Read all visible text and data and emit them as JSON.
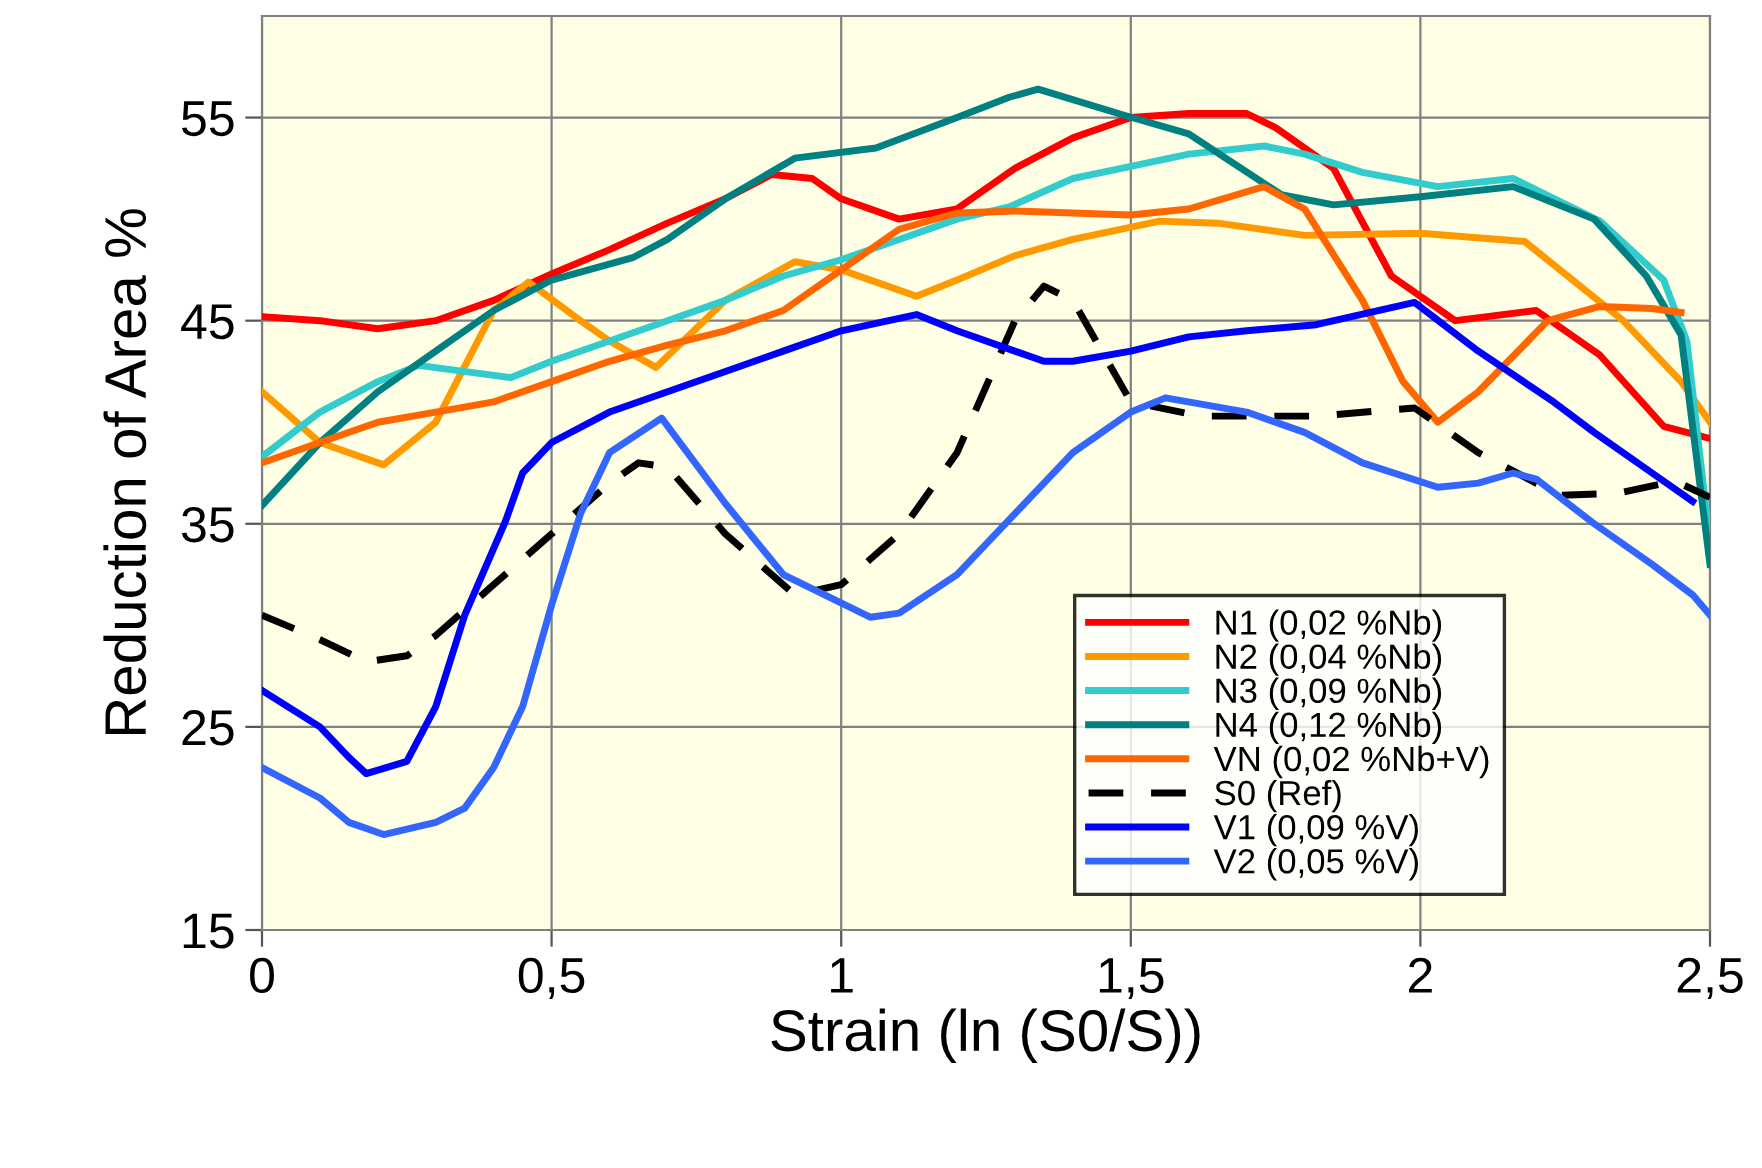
{
  "chart_data": {
    "type": "line",
    "xlabel": "Strain (ln (S0/S))",
    "ylabel": "Reduction of Area %",
    "xlim": [
      0,
      2.5
    ],
    "ylim": [
      15,
      60
    ],
    "xticks": [
      0,
      {
        "value": 0.5,
        "label": "0,5"
      },
      1,
      {
        "value": 1.5,
        "label": "1,5"
      },
      2,
      {
        "value": 2.5,
        "label": "2,5"
      }
    ],
    "yticks": [
      15,
      25,
      35,
      45,
      55
    ],
    "grid": true,
    "legend": "bottom right",
    "series": [
      {
        "name": "N1 (0,02 %Nb)",
        "color": "#ff0000",
        "line_style": "solid",
        "x": [
          0,
          0.1,
          0.2,
          0.3,
          0.4,
          0.5,
          0.6,
          0.7,
          0.8,
          0.88,
          0.95,
          1.0,
          1.1,
          1.2,
          1.3,
          1.4,
          1.5,
          1.6,
          1.7,
          1.75,
          1.85,
          1.95,
          2.06,
          2.2,
          2.31,
          2.42,
          2.5
        ],
        "values": [
          45.2,
          45,
          44.6,
          45,
          46,
          47.3,
          48.5,
          49.8,
          51,
          52.2,
          52,
          51,
          50,
          50.5,
          52.5,
          54,
          55,
          55.2,
          55.2,
          54.5,
          52.5,
          47.2,
          45,
          45.5,
          43.3,
          39.8,
          39.2
        ]
      },
      {
        "name": "N2 (0,04 %Nb)",
        "color": "#ff9900",
        "line_style": "solid",
        "x": [
          0,
          0.1,
          0.21,
          0.3,
          0.4,
          0.46,
          0.55,
          0.6,
          0.68,
          0.8,
          0.92,
          1.0,
          1.13,
          1.2,
          1.3,
          1.4,
          1.55,
          1.65,
          1.8,
          2.0,
          2.18,
          2.35,
          2.45,
          2.5
        ],
        "values": [
          41.5,
          39,
          37.9,
          40,
          45.5,
          46.9,
          45,
          44,
          42.7,
          46,
          47.9,
          47.5,
          46.2,
          47,
          48.2,
          49,
          49.9,
          49.8,
          49.2,
          49.3,
          48.9,
          45,
          42,
          40
        ]
      },
      {
        "name": "N3 (0,09 %Nb)",
        "color": "#33cccc",
        "line_style": "solid",
        "x": [
          0,
          0.1,
          0.2,
          0.27,
          0.43,
          0.5,
          0.6,
          0.7,
          0.8,
          0.9,
          1.0,
          1.1,
          1.2,
          1.29,
          1.4,
          1.5,
          1.6,
          1.73,
          1.8,
          1.9,
          2.03,
          2.16,
          2.31,
          2.42,
          2.46,
          2.5
        ],
        "values": [
          38.3,
          40.5,
          42,
          42.8,
          42.2,
          43,
          44,
          45,
          46,
          47.2,
          48,
          49,
          50,
          50.6,
          52,
          52.6,
          53.2,
          53.6,
          53.2,
          52.3,
          51.6,
          52,
          49.9,
          47,
          44,
          34
        ]
      },
      {
        "name": "N4 (0,12 %Nb)",
        "color": "#008080",
        "line_style": "solid",
        "x": [
          0,
          0.1,
          0.2,
          0.3,
          0.4,
          0.5,
          0.64,
          0.7,
          0.8,
          0.92,
          1.06,
          1.2,
          1.29,
          1.34,
          1.49,
          1.6,
          1.76,
          1.85,
          2.0,
          2.16,
          2.3,
          2.39,
          2.45,
          2.5
        ],
        "values": [
          35.9,
          39,
          41.5,
          43.5,
          45.5,
          47,
          48.1,
          49,
          51,
          53,
          53.5,
          55,
          56,
          56.4,
          55.1,
          54.2,
          51.2,
          50.7,
          51.1,
          51.6,
          50,
          47.2,
          44.3,
          33
        ]
      },
      {
        "name": "VN (0,02 %Nb+V)",
        "color": "#ff6600",
        "line_style": "solid",
        "x": [
          0,
          0.1,
          0.2,
          0.3,
          0.4,
          0.5,
          0.6,
          0.7,
          0.8,
          0.9,
          1.0,
          1.1,
          1.2,
          1.3,
          1.4,
          1.5,
          1.6,
          1.73,
          1.8,
          1.9,
          1.97,
          2.03,
          2.1,
          2.22,
          2.31,
          2.4,
          2.45
        ],
        "values": [
          38,
          39,
          40,
          40.5,
          41,
          42,
          43,
          43.8,
          44.5,
          45.5,
          47.5,
          49.5,
          50.3,
          50.4,
          50.3,
          50.2,
          50.5,
          51.6,
          50.5,
          46,
          42,
          40,
          41.5,
          45,
          45.7,
          45.6,
          45.4
        ]
      },
      {
        "name": "S0 (Ref)",
        "color": "#000000",
        "line_style": "dashed",
        "x": [
          0,
          0.1,
          0.18,
          0.25,
          0.3,
          0.4,
          0.5,
          0.6,
          0.65,
          0.7,
          0.8,
          0.92,
          1.0,
          1.1,
          1.2,
          1.3,
          1.35,
          1.4,
          1.45,
          1.5,
          1.62,
          1.82,
          1.99,
          2.1,
          2.24,
          2.34,
          2.44,
          2.5
        ],
        "values": [
          30.5,
          29.3,
          28.2,
          28.5,
          29.5,
          32,
          34.5,
          37,
          38,
          37.8,
          34.5,
          31.5,
          32,
          34.5,
          38.5,
          45,
          46.7,
          46,
          43.5,
          41,
          40.3,
          40.3,
          40.7,
          38.5,
          36.4,
          36.5,
          37.1,
          36.3
        ]
      },
      {
        "name": "V1 (0,09 %V)",
        "color": "#0000ff",
        "line_style": "solid",
        "x": [
          0,
          0.1,
          0.15,
          0.18,
          0.25,
          0.3,
          0.35,
          0.42,
          0.45,
          0.5,
          0.6,
          0.7,
          0.8,
          0.9,
          1.0,
          1.13,
          1.2,
          1.35,
          1.4,
          1.5,
          1.6,
          1.7,
          1.82,
          1.99,
          2.1,
          2.23,
          2.3,
          2.4,
          2.47
        ],
        "values": [
          26.8,
          25,
          23.5,
          22.7,
          23.3,
          26,
          30.5,
          35.1,
          37.5,
          39,
          40.5,
          41.5,
          42.5,
          43.5,
          44.5,
          45.3,
          44.5,
          43,
          43,
          43.5,
          44.2,
          44.5,
          44.8,
          45.9,
          43.5,
          41,
          39.5,
          37.5,
          36.1
        ]
      },
      {
        "name": "V2 (0,05 %V)",
        "color": "#3366ff",
        "line_style": "solid",
        "x": [
          0,
          0.1,
          0.15,
          0.21,
          0.3,
          0.35,
          0.4,
          0.45,
          0.5,
          0.55,
          0.6,
          0.69,
          0.8,
          0.9,
          1.05,
          1.1,
          1.2,
          1.3,
          1.4,
          1.5,
          1.56,
          1.7,
          1.8,
          1.9,
          2.03,
          2.1,
          2.16,
          2.2,
          2.3,
          2.4,
          2.47,
          2.5
        ],
        "values": [
          23,
          21.5,
          20.3,
          19.7,
          20.3,
          21,
          23,
          26,
          31,
          35.5,
          38.5,
          40.2,
          36,
          32.5,
          30.4,
          30.6,
          32.5,
          35.5,
          38.5,
          40.5,
          41.2,
          40.5,
          39.5,
          38,
          36.8,
          37,
          37.5,
          37.2,
          35,
          33,
          31.5,
          30.5
        ]
      }
    ]
  }
}
